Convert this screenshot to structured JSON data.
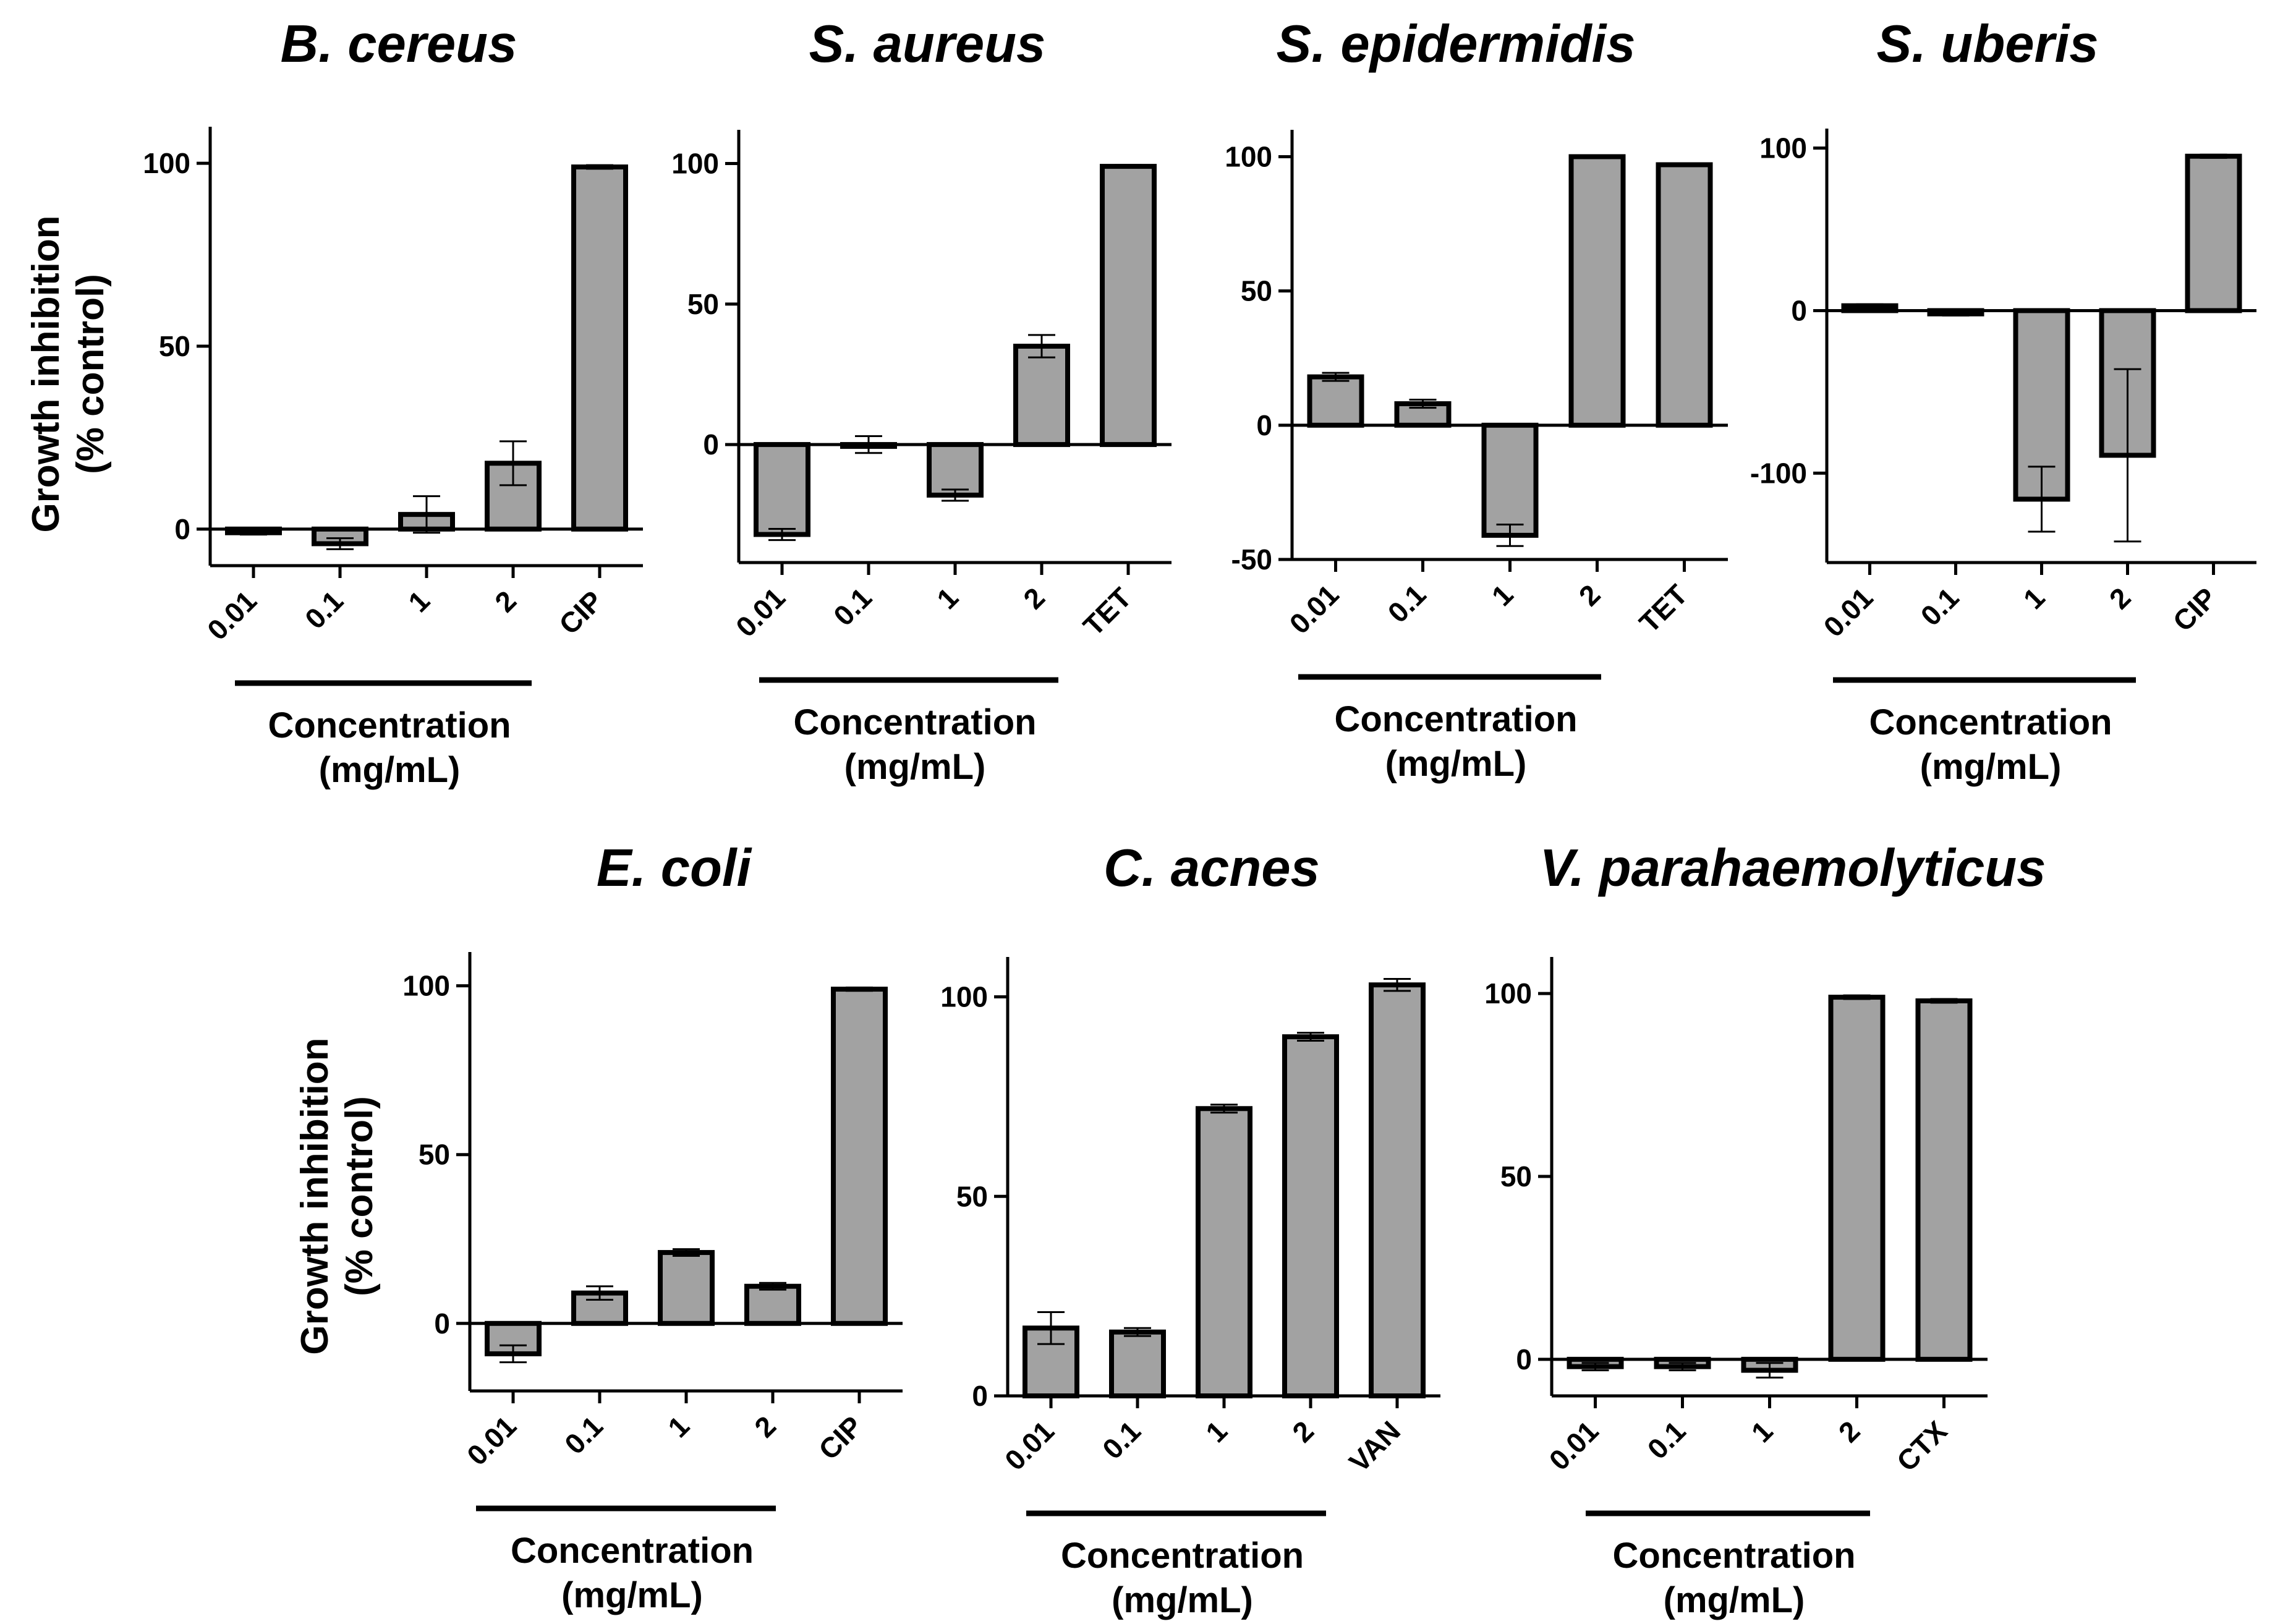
{
  "figure": {
    "ylabel_line1": "Growth inhibition",
    "ylabel_line2": "(% control)",
    "xlabel_line1": "Concentration",
    "xlabel_line2": "(mg/mL)"
  },
  "chart_data": [
    {
      "type": "bar",
      "title": "B. cereus",
      "categories": [
        "0.01",
        "0.1",
        "1",
        "2",
        "CIP"
      ],
      "values": [
        -1,
        -4,
        4,
        18,
        99
      ],
      "errors": [
        0.5,
        1.5,
        5,
        6,
        0.5
      ],
      "yticks": [
        0,
        50,
        100
      ],
      "ylim": [
        -10,
        110
      ],
      "ylabel": "Growth inhibition (% control)",
      "xlabel": "Concentration (mg/mL)",
      "grouped_categories": [
        "0.01",
        "0.1",
        "1",
        "2"
      ]
    },
    {
      "type": "bar",
      "title": "S. aureus",
      "categories": [
        "0.01",
        "0.1",
        "1",
        "2",
        "TET"
      ],
      "values": [
        -32,
        0,
        -18,
        35,
        99
      ],
      "errors": [
        2,
        3,
        2,
        4,
        0.5
      ],
      "yticks": [
        0,
        50,
        100
      ],
      "ylim": [
        -42,
        112
      ],
      "ylabel": "",
      "xlabel": "Concentration (mg/mL)",
      "grouped_categories": [
        "0.01",
        "0.1",
        "1",
        "2"
      ]
    },
    {
      "type": "bar",
      "title": "S. epidermidis",
      "categories": [
        "0.01",
        "0.1",
        "1",
        "2",
        "TET"
      ],
      "values": [
        18,
        8,
        -41,
        100,
        97
      ],
      "errors": [
        1.5,
        1.5,
        4,
        0.5,
        0.5
      ],
      "yticks": [
        -50,
        0,
        50,
        100
      ],
      "ylim": [
        -50,
        110
      ],
      "ylabel": "",
      "xlabel": "Concentration (mg/mL)",
      "grouped_categories": [
        "0.01",
        "0.1",
        "1",
        "2"
      ]
    },
    {
      "type": "bar",
      "title": "S. uberis",
      "categories": [
        "0.01",
        "0.1",
        "1",
        "2",
        "CIP"
      ],
      "values": [
        3,
        -2,
        -116,
        -89,
        95
      ],
      "errors": [
        1,
        1,
        20,
        53,
        1
      ],
      "yticks": [
        -100,
        0,
        100
      ],
      "ylim": [
        -155,
        112
      ],
      "ylabel": "",
      "xlabel": "Concentration (mg/mL)",
      "grouped_categories": [
        "0.01",
        "0.1",
        "1",
        "2"
      ]
    },
    {
      "type": "bar",
      "title": "E. coli",
      "categories": [
        "0.01",
        "0.1",
        "1",
        "2",
        "CIP"
      ],
      "values": [
        -9,
        9,
        21,
        11,
        99
      ],
      "errors": [
        2.5,
        2,
        1,
        1,
        0.5
      ],
      "yticks": [
        0,
        50,
        100
      ],
      "ylim": [
        -20,
        110
      ],
      "ylabel": "Growth inhibition (% control)",
      "xlabel": "Concentration (mg/mL)",
      "grouped_categories": [
        "0.01",
        "0.1",
        "1",
        "2"
      ]
    },
    {
      "type": "bar",
      "title": "C. acnes",
      "categories": [
        "0.01",
        "0.1",
        "1",
        "2",
        "VAN"
      ],
      "values": [
        17,
        16,
        72,
        90,
        103
      ],
      "errors": [
        4,
        1,
        1,
        1,
        1.5
      ],
      "yticks": [
        0,
        50,
        100
      ],
      "ylim": [
        0,
        110
      ],
      "ylabel": "",
      "xlabel": "Concentration (mg/mL)",
      "grouped_categories": [
        "0.01",
        "0.1",
        "1",
        "2"
      ]
    },
    {
      "type": "bar",
      "title": "V. parahaemolyticus",
      "categories": [
        "0.01",
        "0.1",
        "1",
        "2",
        "CTX"
      ],
      "values": [
        -2,
        -2,
        -3,
        99,
        98
      ],
      "errors": [
        1,
        1,
        2,
        0.5,
        0.5
      ],
      "yticks": [
        0,
        50,
        100
      ],
      "ylim": [
        -10,
        110
      ],
      "ylabel": "",
      "xlabel": "Concentration (mg/mL)",
      "grouped_categories": [
        "0.01",
        "0.1",
        "1",
        "2"
      ]
    }
  ]
}
